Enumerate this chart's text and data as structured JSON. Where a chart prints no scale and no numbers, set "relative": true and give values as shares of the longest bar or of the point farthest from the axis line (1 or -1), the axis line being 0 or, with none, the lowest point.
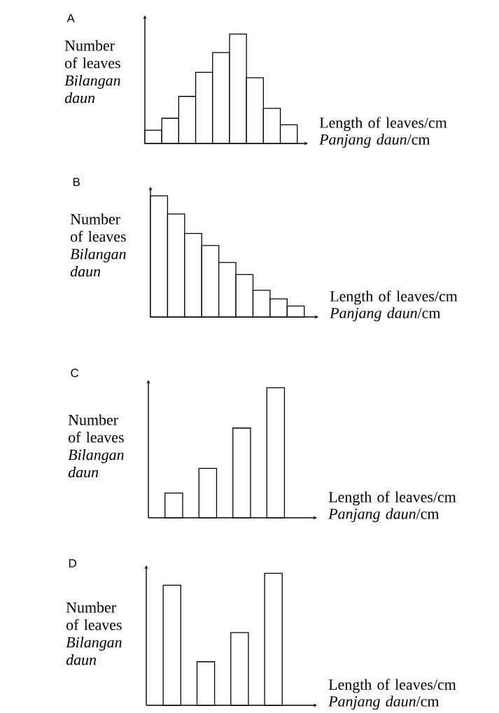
{
  "chart_data": [
    {
      "type": "bar",
      "title": "A",
      "xlabel": "Length of leaves/cm *Panjang daun*/cm",
      "ylabel": "Number of leaves *Bilangan daun*",
      "relative": true,
      "color": "#ffffff",
      "categories": [
        null,
        null,
        null,
        null,
        null,
        null,
        null,
        null,
        null
      ],
      "values": [
        0.12,
        0.23,
        0.43,
        0.65,
        0.83,
        1,
        0.6,
        0.32,
        0.17
      ]
    },
    {
      "type": "bar",
      "title": "B",
      "xlabel": "Length of leaves/cm *Panjang daun*/cm",
      "ylabel": "Number of leaves *Bilangan daun*",
      "relative": true,
      "color": "#ffffff",
      "categories": [
        null,
        null,
        null,
        null,
        null,
        null,
        null,
        null,
        null
      ],
      "values": [
        1,
        0.85,
        0.69,
        0.59,
        0.45,
        0.35,
        0.22,
        0.15,
        0.09
      ]
    },
    {
      "type": "bar",
      "title": "C",
      "xlabel": "Length of leaves/cm *Panjang daun*/cm",
      "ylabel": "Number of leaves *Bilangan daun*",
      "relative": true,
      "color": "#ffffff",
      "categories": [
        null,
        null,
        null,
        null
      ],
      "values": [
        0.19,
        0.38,
        0.69,
        1
      ]
    },
    {
      "type": "bar",
      "title": "D",
      "xlabel": "Length of leaves/cm *Panjang daun*/cm",
      "ylabel": "Number of leaves *Bilangan daun*",
      "relative": true,
      "color": "#ffffff",
      "categories": [
        null,
        null,
        null,
        null
      ],
      "values": [
        0.91,
        0.33,
        0.55,
        1
      ]
    }
  ]
}
